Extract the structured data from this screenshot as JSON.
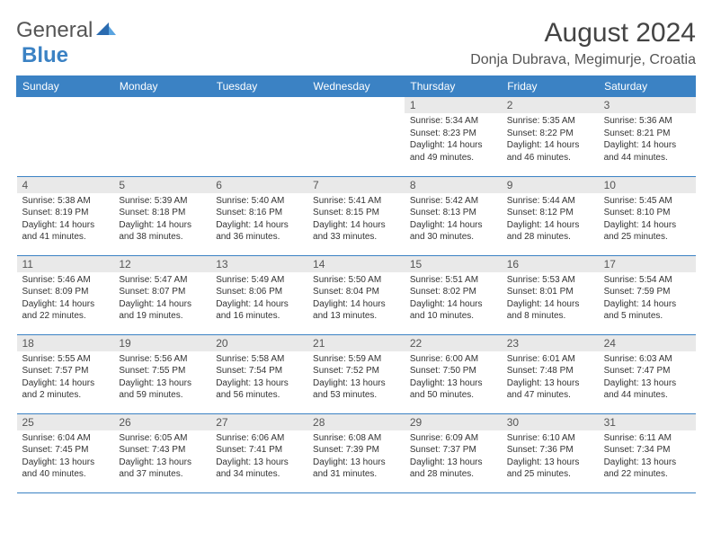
{
  "logo": {
    "text1": "General",
    "text2": "Blue"
  },
  "title": "August 2024",
  "location": "Donja Dubrava, Megimurje, Croatia",
  "colors": {
    "header_bg": "#3b82c4",
    "header_text": "#ffffff",
    "daynum_bg": "#e9e9e9",
    "border": "#3b82c4",
    "body_text": "#333333",
    "logo_gray": "#555555",
    "logo_blue": "#3b82c4"
  },
  "typography": {
    "title_fontsize": 30,
    "location_fontsize": 16,
    "header_fontsize": 12,
    "daynum_fontsize": 12,
    "cell_fontsize": 10
  },
  "layout": {
    "columns": 7,
    "rows": 5,
    "aspect": "792x612"
  },
  "weekdays": [
    "Sunday",
    "Monday",
    "Tuesday",
    "Wednesday",
    "Thursday",
    "Friday",
    "Saturday"
  ],
  "weeks": [
    [
      null,
      null,
      null,
      null,
      {
        "n": "1",
        "sr": "Sunrise: 5:34 AM",
        "ss": "Sunset: 8:23 PM",
        "d1": "Daylight: 14 hours",
        "d2": "and 49 minutes."
      },
      {
        "n": "2",
        "sr": "Sunrise: 5:35 AM",
        "ss": "Sunset: 8:22 PM",
        "d1": "Daylight: 14 hours",
        "d2": "and 46 minutes."
      },
      {
        "n": "3",
        "sr": "Sunrise: 5:36 AM",
        "ss": "Sunset: 8:21 PM",
        "d1": "Daylight: 14 hours",
        "d2": "and 44 minutes."
      }
    ],
    [
      {
        "n": "4",
        "sr": "Sunrise: 5:38 AM",
        "ss": "Sunset: 8:19 PM",
        "d1": "Daylight: 14 hours",
        "d2": "and 41 minutes."
      },
      {
        "n": "5",
        "sr": "Sunrise: 5:39 AM",
        "ss": "Sunset: 8:18 PM",
        "d1": "Daylight: 14 hours",
        "d2": "and 38 minutes."
      },
      {
        "n": "6",
        "sr": "Sunrise: 5:40 AM",
        "ss": "Sunset: 8:16 PM",
        "d1": "Daylight: 14 hours",
        "d2": "and 36 minutes."
      },
      {
        "n": "7",
        "sr": "Sunrise: 5:41 AM",
        "ss": "Sunset: 8:15 PM",
        "d1": "Daylight: 14 hours",
        "d2": "and 33 minutes."
      },
      {
        "n": "8",
        "sr": "Sunrise: 5:42 AM",
        "ss": "Sunset: 8:13 PM",
        "d1": "Daylight: 14 hours",
        "d2": "and 30 minutes."
      },
      {
        "n": "9",
        "sr": "Sunrise: 5:44 AM",
        "ss": "Sunset: 8:12 PM",
        "d1": "Daylight: 14 hours",
        "d2": "and 28 minutes."
      },
      {
        "n": "10",
        "sr": "Sunrise: 5:45 AM",
        "ss": "Sunset: 8:10 PM",
        "d1": "Daylight: 14 hours",
        "d2": "and 25 minutes."
      }
    ],
    [
      {
        "n": "11",
        "sr": "Sunrise: 5:46 AM",
        "ss": "Sunset: 8:09 PM",
        "d1": "Daylight: 14 hours",
        "d2": "and 22 minutes."
      },
      {
        "n": "12",
        "sr": "Sunrise: 5:47 AM",
        "ss": "Sunset: 8:07 PM",
        "d1": "Daylight: 14 hours",
        "d2": "and 19 minutes."
      },
      {
        "n": "13",
        "sr": "Sunrise: 5:49 AM",
        "ss": "Sunset: 8:06 PM",
        "d1": "Daylight: 14 hours",
        "d2": "and 16 minutes."
      },
      {
        "n": "14",
        "sr": "Sunrise: 5:50 AM",
        "ss": "Sunset: 8:04 PM",
        "d1": "Daylight: 14 hours",
        "d2": "and 13 minutes."
      },
      {
        "n": "15",
        "sr": "Sunrise: 5:51 AM",
        "ss": "Sunset: 8:02 PM",
        "d1": "Daylight: 14 hours",
        "d2": "and 10 minutes."
      },
      {
        "n": "16",
        "sr": "Sunrise: 5:53 AM",
        "ss": "Sunset: 8:01 PM",
        "d1": "Daylight: 14 hours",
        "d2": "and 8 minutes."
      },
      {
        "n": "17",
        "sr": "Sunrise: 5:54 AM",
        "ss": "Sunset: 7:59 PM",
        "d1": "Daylight: 14 hours",
        "d2": "and 5 minutes."
      }
    ],
    [
      {
        "n": "18",
        "sr": "Sunrise: 5:55 AM",
        "ss": "Sunset: 7:57 PM",
        "d1": "Daylight: 14 hours",
        "d2": "and 2 minutes."
      },
      {
        "n": "19",
        "sr": "Sunrise: 5:56 AM",
        "ss": "Sunset: 7:55 PM",
        "d1": "Daylight: 13 hours",
        "d2": "and 59 minutes."
      },
      {
        "n": "20",
        "sr": "Sunrise: 5:58 AM",
        "ss": "Sunset: 7:54 PM",
        "d1": "Daylight: 13 hours",
        "d2": "and 56 minutes."
      },
      {
        "n": "21",
        "sr": "Sunrise: 5:59 AM",
        "ss": "Sunset: 7:52 PM",
        "d1": "Daylight: 13 hours",
        "d2": "and 53 minutes."
      },
      {
        "n": "22",
        "sr": "Sunrise: 6:00 AM",
        "ss": "Sunset: 7:50 PM",
        "d1": "Daylight: 13 hours",
        "d2": "and 50 minutes."
      },
      {
        "n": "23",
        "sr": "Sunrise: 6:01 AM",
        "ss": "Sunset: 7:48 PM",
        "d1": "Daylight: 13 hours",
        "d2": "and 47 minutes."
      },
      {
        "n": "24",
        "sr": "Sunrise: 6:03 AM",
        "ss": "Sunset: 7:47 PM",
        "d1": "Daylight: 13 hours",
        "d2": "and 44 minutes."
      }
    ],
    [
      {
        "n": "25",
        "sr": "Sunrise: 6:04 AM",
        "ss": "Sunset: 7:45 PM",
        "d1": "Daylight: 13 hours",
        "d2": "and 40 minutes."
      },
      {
        "n": "26",
        "sr": "Sunrise: 6:05 AM",
        "ss": "Sunset: 7:43 PM",
        "d1": "Daylight: 13 hours",
        "d2": "and 37 minutes."
      },
      {
        "n": "27",
        "sr": "Sunrise: 6:06 AM",
        "ss": "Sunset: 7:41 PM",
        "d1": "Daylight: 13 hours",
        "d2": "and 34 minutes."
      },
      {
        "n": "28",
        "sr": "Sunrise: 6:08 AM",
        "ss": "Sunset: 7:39 PM",
        "d1": "Daylight: 13 hours",
        "d2": "and 31 minutes."
      },
      {
        "n": "29",
        "sr": "Sunrise: 6:09 AM",
        "ss": "Sunset: 7:37 PM",
        "d1": "Daylight: 13 hours",
        "d2": "and 28 minutes."
      },
      {
        "n": "30",
        "sr": "Sunrise: 6:10 AM",
        "ss": "Sunset: 7:36 PM",
        "d1": "Daylight: 13 hours",
        "d2": "and 25 minutes."
      },
      {
        "n": "31",
        "sr": "Sunrise: 6:11 AM",
        "ss": "Sunset: 7:34 PM",
        "d1": "Daylight: 13 hours",
        "d2": "and 22 minutes."
      }
    ]
  ]
}
